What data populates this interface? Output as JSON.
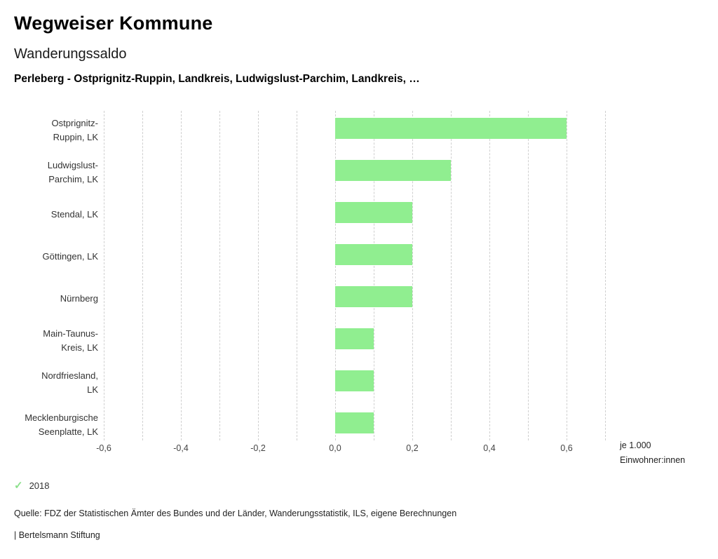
{
  "header": {
    "title": "Wegweiser Kommune",
    "subtitle": "Wanderungssaldo",
    "selection": "Perleberg - Ostprignitz-Ruppin, Landkreis, Ludwigslust-Parchim, Landkreis, …"
  },
  "chart_data": {
    "type": "bar",
    "orientation": "horizontal",
    "title": "Wanderungssaldo",
    "categories": [
      "Ostprignitz-Ruppin, LK",
      "Ludwigslust-Parchim, LK",
      "Stendal, LK",
      "Göttingen, LK",
      "Nürnberg",
      "Main-Taunus-Kreis, LK",
      "Nordfriesland, LK",
      "Mecklenburgische Seenplatte, LK"
    ],
    "label_lines": [
      [
        "Ostprignitz-",
        "Ruppin, LK"
      ],
      [
        "Ludwigslust-",
        "Parchim, LK"
      ],
      [
        "Stendal, LK"
      ],
      [
        "Göttingen, LK"
      ],
      [
        "Nürnberg"
      ],
      [
        "Main-Taunus-",
        "Kreis, LK"
      ],
      [
        "Nordfriesland,",
        "LK"
      ],
      [
        "Mecklenburgische",
        "Seenplatte, LK"
      ]
    ],
    "values": [
      0.6,
      0.3,
      0.2,
      0.2,
      0.2,
      0.1,
      0.1,
      0.1
    ],
    "xlim": [
      -0.6,
      0.7
    ],
    "x_ticks": [
      -0.6,
      -0.4,
      -0.2,
      0,
      0.2,
      0.4,
      0.6
    ],
    "x_tick_labels": [
      "-0,6",
      "-0,4",
      "-0,2",
      "0,0",
      "0,2",
      "0,4",
      "0,6"
    ],
    "unit_label_lines": [
      "je 1.000",
      "Einwohner:innen"
    ],
    "bar_color": "#90ee90",
    "grid": "dashed-vertical",
    "legend_position": "bottom-left"
  },
  "legend": {
    "year": "2018",
    "check_color": "#8ce08c",
    "check_glyph": "✓"
  },
  "footer": {
    "source": "Quelle: FDZ der Statistischen Ämter des Bundes und der Länder, Wanderungsstatistik, ILS, eigene Berechnungen",
    "brand": "| Bertelsmann Stiftung"
  }
}
